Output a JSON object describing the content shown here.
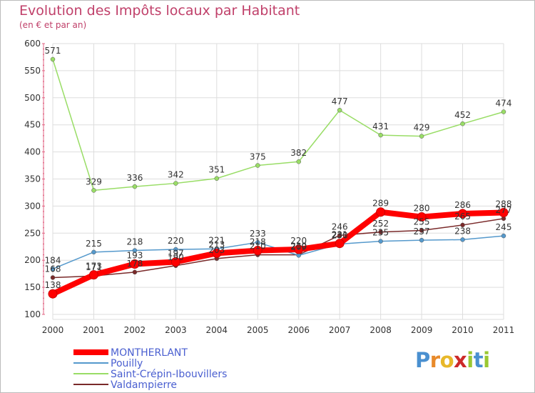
{
  "chart_data": {
    "type": "line",
    "title": "Evolution des Impôts locaux par Habitant",
    "subtitle": "(en € et par an)",
    "xlabel": "",
    "ylabel": "",
    "ylim": [
      100,
      600
    ],
    "yticks": [
      "100",
      "150",
      "200",
      "250",
      "300",
      "350",
      "400",
      "450",
      "500",
      "550",
      "600"
    ],
    "categories": [
      "2000",
      "2001",
      "2002",
      "2003",
      "2004",
      "2005",
      "2006",
      "2007",
      "2008",
      "2009",
      "2010",
      "2011"
    ],
    "legend_position": "bottom-left",
    "series": [
      {
        "name": "Saint-Crépin-Ibouvillers",
        "color": "#99dd66",
        "values": [
          571,
          329,
          336,
          342,
          351,
          375,
          382,
          477,
          431,
          429,
          452,
          474
        ]
      },
      {
        "name": "Valdampierre",
        "color": "#7a2a2a",
        "values": [
          168,
          171,
          178,
          190,
          203,
          210,
          210,
          246,
          252,
          255,
          265,
          277
        ]
      },
      {
        "name": "Pouilly",
        "color": "#5599cc",
        "values": [
          184,
          215,
          218,
          220,
          221,
          233,
          209,
          230,
          235,
          237,
          238,
          245
        ]
      },
      {
        "name": "MONTHERLANT",
        "color": "#ff0000",
        "values": [
          138,
          173,
          193,
          197,
          213,
          218,
          220,
          231,
          289,
          280,
          286,
          288
        ]
      }
    ],
    "legend_order": [
      "MONTHERLANT",
      "Pouilly",
      "Saint-Crépin-Ibouvillers",
      "Valdampierre"
    ]
  },
  "logo": {
    "letters": [
      "P",
      "r",
      "o",
      "x",
      "i",
      "t",
      "i"
    ],
    "colors": [
      "#4a90d0",
      "#e88a2a",
      "#e8b82a",
      "#cc2a2a",
      "#9ac832",
      "#4a90d0",
      "#9ac832"
    ]
  }
}
